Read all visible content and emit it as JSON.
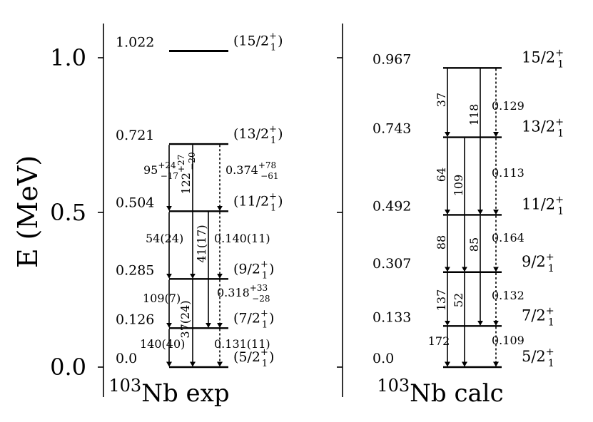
{
  "axis": {
    "label": "E (MeV)",
    "ticks": [
      {
        "value": 0.0,
        "label": "0.0"
      },
      {
        "value": 0.5,
        "label": "0.5"
      },
      {
        "value": 1.0,
        "label": "1.0"
      }
    ]
  },
  "panels": [
    {
      "id": "exp",
      "mass_number": "103",
      "title": "Nb exp",
      "levels": [
        {
          "energy": 0.0,
          "energy_label": "0.0",
          "spin": "(5/2",
          "sup": "+",
          "sub": "1",
          "close": ")"
        },
        {
          "energy": 0.126,
          "energy_label": "0.126",
          "spin": "(7/2",
          "sup": "+",
          "sub": "1",
          "close": ")"
        },
        {
          "energy": 0.285,
          "energy_label": "0.285",
          "spin": "(9/2",
          "sup": "+",
          "sub": "1",
          "close": ")"
        },
        {
          "energy": 0.504,
          "energy_label": "0.504",
          "spin": "(11/2",
          "sup": "+",
          "sub": "1",
          "close": ")"
        },
        {
          "energy": 0.721,
          "energy_label": "0.721",
          "spin": "(13/2",
          "sup": "+",
          "sub": "1",
          "close": ")"
        },
        {
          "energy": 1.022,
          "energy_label": "1.022",
          "spin": "(15/2",
          "sup": "+",
          "sub": "1",
          "close": ")"
        }
      ],
      "transitions": [
        {
          "from": 1,
          "to": 0,
          "type": "E2",
          "label": "140(40)",
          "sup": "",
          "sub": ""
        },
        {
          "from": 2,
          "to": 1,
          "type": "E2",
          "label": "109(7)",
          "sup": "",
          "sub": ""
        },
        {
          "from": 2,
          "to": 0,
          "type": "E2",
          "label": "37(24)",
          "sup": "",
          "sub": ""
        },
        {
          "from": 3,
          "to": 2,
          "type": "E2",
          "label": "54(24)",
          "sup": "",
          "sub": ""
        },
        {
          "from": 3,
          "to": 1,
          "type": "E2",
          "label": "41(17)",
          "sup": "",
          "sub": ""
        },
        {
          "from": 4,
          "to": 3,
          "type": "E2",
          "label": "95",
          "sup": "+24",
          "sub": "−17"
        },
        {
          "from": 4,
          "to": 2,
          "type": "E2",
          "label": "122",
          "sup": "+27",
          "sub": "−20"
        },
        {
          "from": 1,
          "to": 0,
          "type": "M1",
          "label": "0.131(11)",
          "sup": "",
          "sub": ""
        },
        {
          "from": 2,
          "to": 1,
          "type": "M1",
          "label": "0.318",
          "sup": "+33",
          "sub": "−28"
        },
        {
          "from": 3,
          "to": 2,
          "type": "M1",
          "label": "0.140(11)",
          "sup": "",
          "sub": ""
        },
        {
          "from": 4,
          "to": 3,
          "type": "M1",
          "label": "0.374",
          "sup": "+78",
          "sub": "−61"
        }
      ]
    },
    {
      "id": "calc",
      "mass_number": "103",
      "title": "Nb calc",
      "levels": [
        {
          "energy": 0.0,
          "energy_label": "0.0",
          "spin": "5/2",
          "sup": "+",
          "sub": "1",
          "close": ""
        },
        {
          "energy": 0.133,
          "energy_label": "0.133",
          "spin": "7/2",
          "sup": "+",
          "sub": "1",
          "close": ""
        },
        {
          "energy": 0.307,
          "energy_label": "0.307",
          "spin": "9/2",
          "sup": "+",
          "sub": "1",
          "close": ""
        },
        {
          "energy": 0.492,
          "energy_label": "0.492",
          "spin": "11/2",
          "sup": "+",
          "sub": "1",
          "close": ""
        },
        {
          "energy": 0.743,
          "energy_label": "0.743",
          "spin": "13/2",
          "sup": "+",
          "sub": "1",
          "close": ""
        },
        {
          "energy": 0.967,
          "energy_label": "0.967",
          "spin": "15/2",
          "sup": "+",
          "sub": "1",
          "close": ""
        }
      ],
      "transitions": [
        {
          "from": 1,
          "to": 0,
          "type": "E2",
          "label": "172"
        },
        {
          "from": 2,
          "to": 1,
          "type": "E2",
          "label": "137"
        },
        {
          "from": 2,
          "to": 0,
          "type": "E2",
          "label": "52"
        },
        {
          "from": 3,
          "to": 2,
          "type": "E2",
          "label": "88"
        },
        {
          "from": 3,
          "to": 1,
          "type": "E2",
          "label": "85"
        },
        {
          "from": 4,
          "to": 3,
          "type": "E2",
          "label": "64"
        },
        {
          "from": 4,
          "to": 2,
          "type": "E2",
          "label": "109"
        },
        {
          "from": 5,
          "to": 4,
          "type": "E2",
          "label": "37"
        },
        {
          "from": 5,
          "to": 3,
          "type": "E2",
          "label": "118"
        },
        {
          "from": 1,
          "to": 0,
          "type": "M1",
          "label": "0.109"
        },
        {
          "from": 2,
          "to": 1,
          "type": "M1",
          "label": "0.132"
        },
        {
          "from": 3,
          "to": 2,
          "type": "M1",
          "label": "0.164"
        },
        {
          "from": 4,
          "to": 3,
          "type": "M1",
          "label": "0.113"
        },
        {
          "from": 5,
          "to": 4,
          "type": "M1",
          "label": "0.129"
        }
      ]
    }
  ]
}
